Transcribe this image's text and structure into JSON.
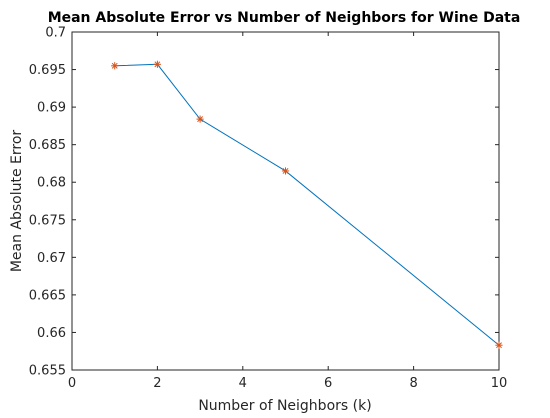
{
  "chart_data": {
    "type": "line",
    "title": "Mean Absolute Error vs Number of Neighbors for Wine Data",
    "xlabel": "Number of Neighbors (k)",
    "ylabel": "Mean Absolute Error",
    "xlim": [
      0,
      10
    ],
    "ylim": [
      0.655,
      0.7
    ],
    "xticks": [
      0,
      2,
      4,
      6,
      8,
      10
    ],
    "yticks": [
      0.655,
      0.66,
      0.665,
      0.67,
      0.675,
      0.68,
      0.685,
      0.69,
      0.695,
      0.7
    ],
    "xtick_labels": [
      "0",
      "2",
      "4",
      "6",
      "8",
      "10"
    ],
    "ytick_labels": [
      "0.655",
      "0.66",
      "0.665",
      "0.67",
      "0.675",
      "0.68",
      "0.685",
      "0.69",
      "0.695",
      "0.7"
    ],
    "grid": false,
    "legend": "none",
    "series": [
      {
        "x": [
          1,
          2,
          3,
          5,
          10
        ],
        "y": [
          0.6955,
          0.6957,
          0.6884,
          0.6815,
          0.6583
        ],
        "line_color": "#0072BD",
        "marker": "*",
        "marker_color": "#D95319"
      }
    ]
  }
}
